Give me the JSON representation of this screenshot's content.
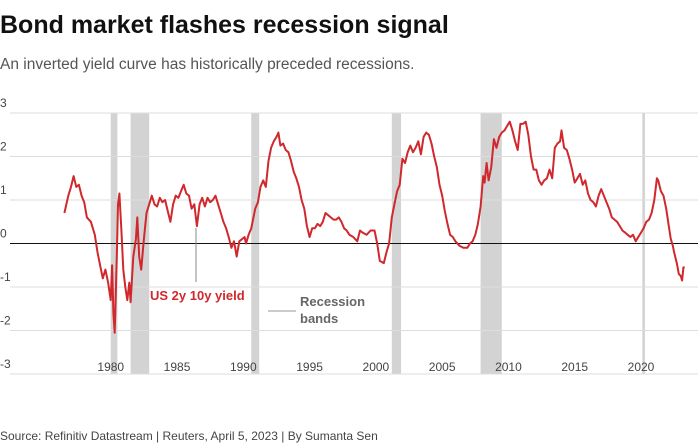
{
  "chart_data": {
    "type": "line",
    "title": "Bond market flashes recession signal",
    "subtitle": "An inverted yield curve has historically preceded recessions.",
    "source": "Source: Refinitiv Datastream | Reuters, April 5, 2023 | By Sumanta Sen",
    "recession_label": [
      "Recession",
      "bands"
    ],
    "recession_color": "#d3d3d3",
    "recessions": [
      [
        1980.0,
        1980.5
      ],
      [
        1981.5,
        1982.9
      ],
      [
        1990.6,
        1991.2
      ],
      [
        2001.2,
        2001.9
      ],
      [
        2007.9,
        2009.5
      ],
      [
        2020.1,
        2020.3
      ]
    ],
    "xlim": [
      1972.4,
      2024.3
    ],
    "xticks": [
      1980,
      1985,
      1990,
      1995,
      2000,
      2005,
      2010,
      2015,
      2020
    ],
    "ylim": [
      -3,
      3
    ],
    "yticks": [
      -3,
      -2,
      -1,
      0,
      1,
      2,
      3
    ],
    "grid": true,
    "x": [
      1976.5,
      1976.8,
      1977.0,
      1977.2,
      1977.4,
      1977.6,
      1977.8,
      1978.0,
      1978.2,
      1978.5,
      1978.8,
      1979.0,
      1979.2,
      1979.4,
      1979.6,
      1979.8,
      1980.0,
      1980.1,
      1980.2,
      1980.3,
      1980.45,
      1980.55,
      1980.65,
      1980.8,
      1980.95,
      1981.1,
      1981.25,
      1981.4,
      1981.5,
      1981.7,
      1981.9,
      1982.0,
      1982.15,
      1982.3,
      1982.5,
      1982.7,
      1982.9,
      1983.1,
      1983.3,
      1983.5,
      1983.7,
      1983.9,
      1984.1,
      1984.3,
      1984.5,
      1984.7,
      1984.9,
      1985.1,
      1985.3,
      1985.5,
      1985.7,
      1985.9,
      1986.1,
      1986.3,
      1986.5,
      1986.7,
      1986.9,
      1987.1,
      1987.3,
      1987.5,
      1987.7,
      1987.9,
      1988.1,
      1988.3,
      1988.5,
      1988.7,
      1988.9,
      1989.1,
      1989.3,
      1989.5,
      1989.7,
      1989.9,
      1990.1,
      1990.2,
      1990.4,
      1990.6,
      1990.9,
      1991.1,
      1991.3,
      1991.5,
      1991.7,
      1991.9,
      1992.1,
      1992.3,
      1992.5,
      1992.65,
      1992.8,
      1993.0,
      1993.2,
      1993.4,
      1993.6,
      1993.8,
      1994.0,
      1994.2,
      1994.4,
      1994.6,
      1994.8,
      1995.0,
      1995.2,
      1995.4,
      1995.6,
      1995.8,
      1996.0,
      1996.2,
      1996.4,
      1996.6,
      1996.8,
      1997.0,
      1997.2,
      1997.4,
      1997.6,
      1997.8,
      1998.0,
      1998.3,
      1998.6,
      1998.8,
      1999.0,
      1999.3,
      1999.6,
      1999.9,
      2000.1,
      2000.3,
      2000.6,
      2000.8,
      2001.0,
      2001.2,
      2001.4,
      2001.6,
      2001.8,
      2002.0,
      2002.2,
      2002.4,
      2002.6,
      2002.8,
      2003.0,
      2003.2,
      2003.4,
      2003.6,
      2003.8,
      2004.0,
      2004.2,
      2004.4,
      2004.6,
      2004.8,
      2005.0,
      2005.2,
      2005.4,
      2005.6,
      2005.8,
      2006.0,
      2006.3,
      2006.6,
      2006.9,
      2007.1,
      2007.3,
      2007.5,
      2007.7,
      2007.9,
      2008.1,
      2008.2,
      2008.35,
      2008.5,
      2008.7,
      2008.9,
      2009.1,
      2009.3,
      2009.5,
      2009.7,
      2009.9,
      2010.1,
      2010.3,
      2010.5,
      2010.7,
      2010.9,
      2011.1,
      2011.3,
      2011.5,
      2011.7,
      2011.9,
      2012.1,
      2012.3,
      2012.5,
      2012.7,
      2012.9,
      2013.1,
      2013.3,
      2013.5,
      2013.7,
      2013.9,
      2014.0,
      2014.2,
      2014.4,
      2014.6,
      2014.8,
      2015.0,
      2015.2,
      2015.4,
      2015.6,
      2015.8,
      2016.0,
      2016.2,
      2016.4,
      2016.6,
      2016.8,
      2017.0,
      2017.2,
      2017.4,
      2017.6,
      2017.8,
      2018.0,
      2018.2,
      2018.4,
      2018.6,
      2018.8,
      2019.0,
      2019.2,
      2019.4,
      2019.6,
      2019.8,
      2020.0,
      2020.2,
      2020.4,
      2020.6,
      2020.8,
      2021.0,
      2021.2,
      2021.3,
      2021.5,
      2021.7,
      2021.9,
      2022.1,
      2022.25,
      2022.4,
      2022.5,
      2022.7,
      2022.85,
      2023.0,
      2023.1,
      2023.2,
      2023.3
    ],
    "series": [
      {
        "name": "US 2y 10y yield",
        "color": "#d0282c",
        "values": [
          0.7,
          1.1,
          1.3,
          1.55,
          1.3,
          1.35,
          1.1,
          0.95,
          0.6,
          0.5,
          0.2,
          -0.2,
          -0.5,
          -0.8,
          -0.6,
          -0.9,
          -1.3,
          -0.5,
          -1.6,
          -2.05,
          -0.4,
          0.9,
          1.15,
          0.3,
          -0.6,
          -1.0,
          -1.3,
          -0.9,
          -1.35,
          -0.3,
          0.1,
          0.6,
          -0.3,
          -0.6,
          0.1,
          0.7,
          0.9,
          1.1,
          0.9,
          0.85,
          1.05,
          0.95,
          1.0,
          0.75,
          0.5,
          0.9,
          1.1,
          1.05,
          1.2,
          1.35,
          1.15,
          1.1,
          0.8,
          0.9,
          0.4,
          0.9,
          1.05,
          0.85,
          1.05,
          0.95,
          1.0,
          1.1,
          0.9,
          0.7,
          0.5,
          0.35,
          0.15,
          -0.1,
          0.05,
          -0.3,
          0.05,
          0.1,
          0.15,
          0.0,
          0.2,
          0.35,
          0.8,
          0.95,
          1.3,
          1.45,
          1.3,
          1.9,
          2.2,
          2.35,
          2.45,
          2.55,
          2.25,
          2.3,
          2.15,
          2.1,
          1.9,
          1.65,
          1.5,
          1.3,
          1.0,
          0.8,
          0.4,
          0.15,
          0.35,
          0.35,
          0.45,
          0.4,
          0.5,
          0.7,
          0.65,
          0.6,
          0.55,
          0.55,
          0.6,
          0.5,
          0.35,
          0.3,
          0.2,
          0.15,
          0.05,
          0.3,
          0.25,
          0.2,
          0.3,
          0.3,
          0.0,
          -0.4,
          -0.45,
          -0.2,
          0.0,
          0.6,
          0.9,
          1.2,
          1.35,
          1.95,
          1.85,
          2.1,
          2.25,
          2.1,
          2.2,
          2.35,
          2.05,
          2.45,
          2.55,
          2.5,
          2.3,
          2.0,
          1.75,
          1.35,
          1.1,
          0.75,
          0.45,
          0.2,
          0.15,
          0.05,
          -0.05,
          -0.1,
          -0.1,
          0.0,
          0.05,
          0.2,
          0.45,
          0.85,
          1.55,
          1.4,
          1.85,
          1.45,
          1.75,
          2.4,
          2.2,
          2.45,
          2.55,
          2.6,
          2.7,
          2.8,
          2.6,
          2.35,
          2.15,
          2.75,
          2.75,
          2.8,
          2.5,
          2.0,
          1.7,
          1.7,
          1.45,
          1.35,
          1.45,
          1.5,
          1.7,
          1.5,
          2.2,
          2.3,
          2.35,
          2.6,
          2.2,
          2.15,
          1.95,
          1.7,
          1.4,
          1.5,
          1.6,
          1.35,
          1.45,
          1.15,
          1.0,
          0.95,
          0.85,
          1.1,
          1.25,
          1.1,
          0.95,
          0.8,
          0.6,
          0.55,
          0.5,
          0.4,
          0.3,
          0.25,
          0.2,
          0.15,
          0.2,
          0.05,
          0.15,
          0.25,
          0.35,
          0.5,
          0.55,
          0.7,
          1.0,
          1.5,
          1.45,
          1.2,
          1.1,
          0.8,
          0.4,
          0.1,
          -0.05,
          -0.2,
          -0.45,
          -0.7,
          -0.75,
          -0.85,
          -0.55,
          -0.55
        ]
      }
    ]
  }
}
